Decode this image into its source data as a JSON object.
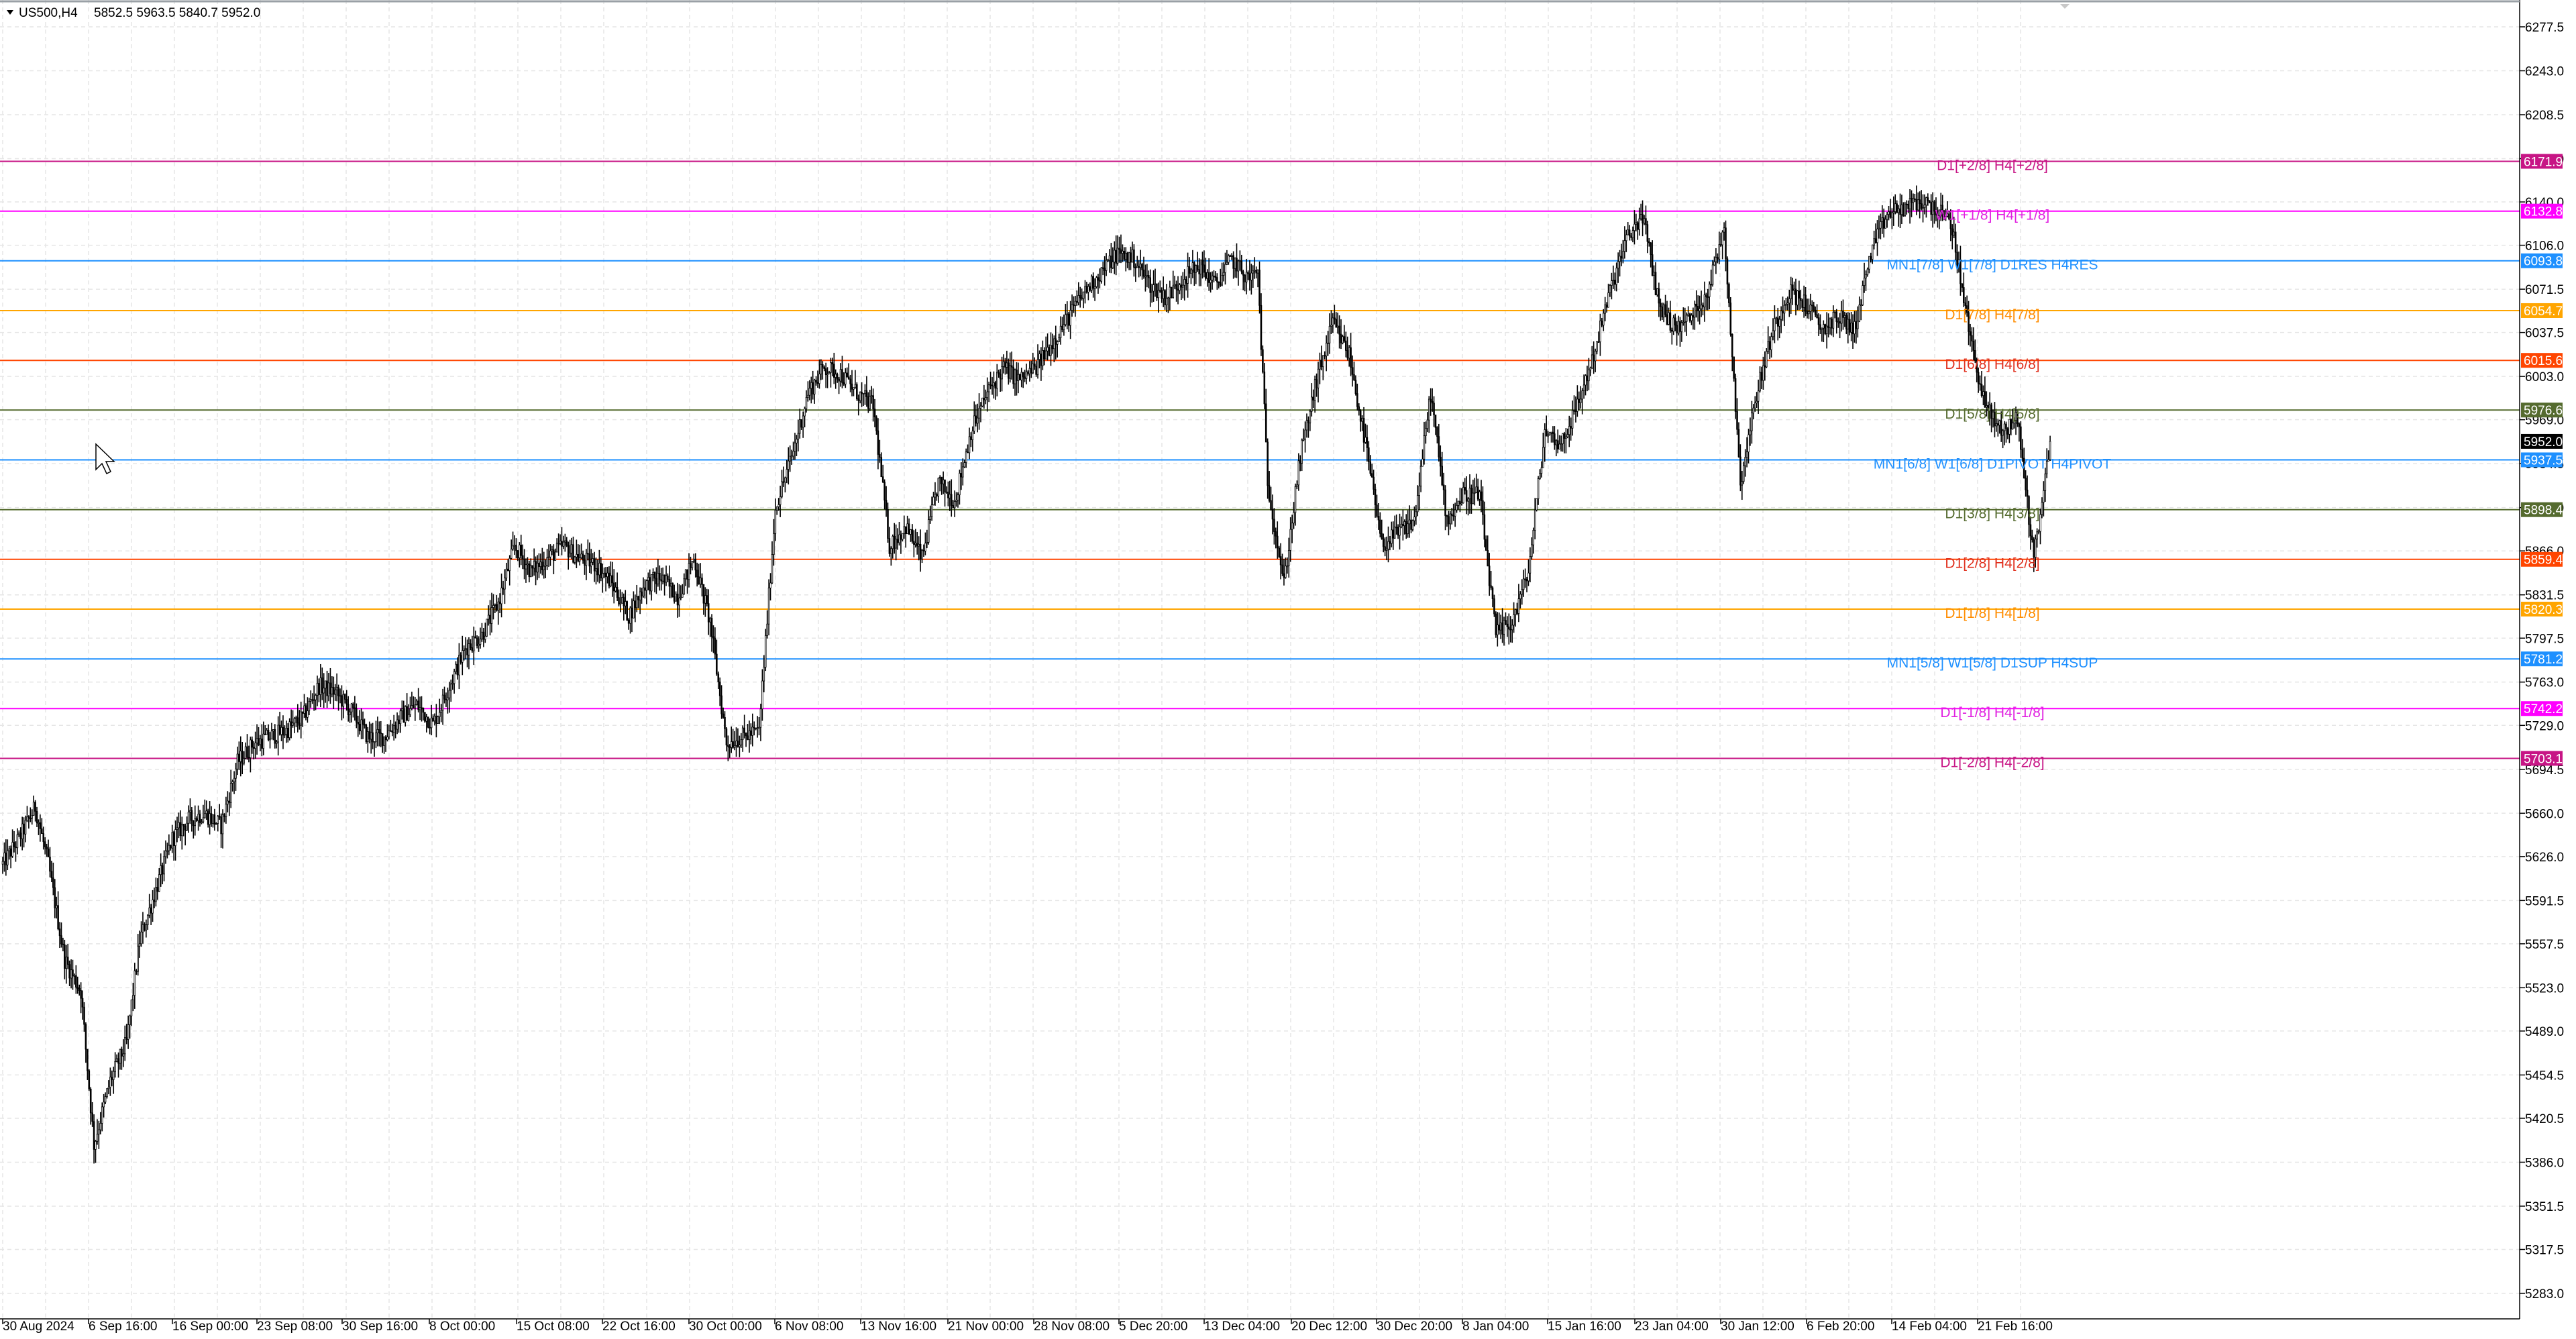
{
  "header": {
    "symbol": "US500,H4",
    "ohlc": "5852.5 5963.5 5840.7 5952.0"
  },
  "current_price": {
    "value": 5952.0,
    "label": "5952.0",
    "color": "#000000"
  },
  "chart_data": {
    "type": "candlestick",
    "ylim": [
      5270,
      6278
    ],
    "grid": true,
    "y_ticks": [
      "6277.5",
      "6243.0",
      "6208.5",
      "6174.0",
      "6140.0",
      "6106.0",
      "6071.5",
      "6037.5",
      "6003.0",
      "5969.0",
      "5934.5",
      "5900.0",
      "5866.0",
      "5831.5",
      "5797.5",
      "5763.0",
      "5729.0",
      "5694.5",
      "5660.0",
      "5626.0",
      "5591.5",
      "5557.5",
      "5523.0",
      "5489.0",
      "5454.5",
      "5420.5",
      "5386.0",
      "5351.5",
      "5317.5",
      "5283.0"
    ],
    "x_ticks": [
      "30 Aug 2024",
      "6 Sep 16:00",
      "16 Sep 00:00",
      "23 Sep 08:00",
      "30 Sep 16:00",
      "8 Oct 00:00",
      "15 Oct 08:00",
      "22 Oct 16:00",
      "30 Oct 00:00",
      "6 Nov 08:00",
      "13 Nov 16:00",
      "21 Nov 00:00",
      "28 Nov 08:00",
      "5 Dec 20:00",
      "13 Dec 04:00",
      "20 Dec 12:00",
      "30 Dec 20:00",
      "8 Jan 04:00",
      "15 Jan 16:00",
      "23 Jan 04:00",
      "30 Jan 12:00",
      "6 Feb 20:00",
      "14 Feb 04:00",
      "21 Feb 16:00"
    ],
    "price_path": [
      [
        0,
        5620
      ],
      [
        10,
        5640
      ],
      [
        20,
        5665
      ],
      [
        28,
        5620
      ],
      [
        38,
        5545
      ],
      [
        48,
        5520
      ],
      [
        56,
        5400
      ],
      [
        66,
        5450
      ],
      [
        76,
        5480
      ],
      [
        84,
        5560
      ],
      [
        94,
        5600
      ],
      [
        104,
        5640
      ],
      [
        114,
        5655
      ],
      [
        124,
        5660
      ],
      [
        134,
        5650
      ],
      [
        144,
        5700
      ],
      [
        154,
        5715
      ],
      [
        164,
        5720
      ],
      [
        174,
        5725
      ],
      [
        184,
        5735
      ],
      [
        194,
        5760
      ],
      [
        204,
        5755
      ],
      [
        214,
        5740
      ],
      [
        224,
        5720
      ],
      [
        234,
        5720
      ],
      [
        244,
        5735
      ],
      [
        254,
        5745
      ],
      [
        264,
        5730
      ],
      [
        274,
        5760
      ],
      [
        284,
        5790
      ],
      [
        294,
        5800
      ],
      [
        304,
        5825
      ],
      [
        314,
        5870
      ],
      [
        324,
        5850
      ],
      [
        334,
        5860
      ],
      [
        344,
        5870
      ],
      [
        354,
        5860
      ],
      [
        364,
        5855
      ],
      [
        374,
        5840
      ],
      [
        384,
        5815
      ],
      [
        394,
        5840
      ],
      [
        404,
        5845
      ],
      [
        414,
        5830
      ],
      [
        424,
        5860
      ],
      [
        434,
        5810
      ],
      [
        444,
        5715
      ],
      [
        454,
        5720
      ],
      [
        464,
        5725
      ],
      [
        474,
        5900
      ],
      [
        484,
        5940
      ],
      [
        494,
        5990
      ],
      [
        504,
        6010
      ],
      [
        514,
        6005
      ],
      [
        524,
        5990
      ],
      [
        534,
        5980
      ],
      [
        544,
        5870
      ],
      [
        554,
        5885
      ],
      [
        564,
        5860
      ],
      [
        574,
        5920
      ],
      [
        584,
        5905
      ],
      [
        594,
        5960
      ],
      [
        604,
        5990
      ],
      [
        614,
        6010
      ],
      [
        624,
        6000
      ],
      [
        634,
        6010
      ],
      [
        644,
        6030
      ],
      [
        654,
        6050
      ],
      [
        664,
        6070
      ],
      [
        674,
        6085
      ],
      [
        684,
        6100
      ],
      [
        694,
        6095
      ],
      [
        704,
        6075
      ],
      [
        714,
        6065
      ],
      [
        724,
        6080
      ],
      [
        734,
        6090
      ],
      [
        744,
        6075
      ],
      [
        754,
        6095
      ],
      [
        764,
        6080
      ],
      [
        770,
        6085
      ],
      [
        776,
        5920
      ],
      [
        786,
        5840
      ],
      [
        796,
        5940
      ],
      [
        806,
        6000
      ],
      [
        816,
        6045
      ],
      [
        826,
        6020
      ],
      [
        836,
        5950
      ],
      [
        846,
        5870
      ],
      [
        856,
        5880
      ],
      [
        866,
        5890
      ],
      [
        876,
        5990
      ],
      [
        886,
        5890
      ],
      [
        896,
        5910
      ],
      [
        906,
        5910
      ],
      [
        916,
        5800
      ],
      [
        926,
        5810
      ],
      [
        936,
        5850
      ],
      [
        946,
        5960
      ],
      [
        956,
        5950
      ],
      [
        966,
        5980
      ],
      [
        976,
        6020
      ],
      [
        986,
        6070
      ],
      [
        996,
        6110
      ],
      [
        1006,
        6130
      ],
      [
        1016,
        6060
      ],
      [
        1026,
        6040
      ],
      [
        1036,
        6050
      ],
      [
        1046,
        6070
      ],
      [
        1056,
        6120
      ],
      [
        1066,
        5920
      ],
      [
        1076,
        5990
      ],
      [
        1086,
        6040
      ],
      [
        1096,
        6070
      ],
      [
        1106,
        6060
      ],
      [
        1116,
        6040
      ],
      [
        1126,
        6050
      ],
      [
        1136,
        6040
      ],
      [
        1146,
        6100
      ],
      [
        1156,
        6130
      ],
      [
        1166,
        6135
      ],
      [
        1176,
        6140
      ],
      [
        1186,
        6135
      ],
      [
        1196,
        6120
      ],
      [
        1206,
        6040
      ],
      [
        1216,
        5980
      ],
      [
        1226,
        5960
      ],
      [
        1236,
        5970
      ],
      [
        1246,
        5860
      ],
      [
        1256,
        5952
      ]
    ],
    "levels": [
      {
        "value": 6171.9,
        "badge": "6171.9",
        "label": "D1[+2/8] H4[+2/8]",
        "color": "#c71585",
        "label_color": "#c71585"
      },
      {
        "value": 6132.8,
        "badge": "6132.8",
        "label": "W1[+1/8] H4[+1/8]",
        "color": "#ff00ff",
        "label_color": "#e020e0"
      },
      {
        "value": 6093.8,
        "badge": "6093.8",
        "label": "MN1[7/8] W1[7/8] D1RES H4RES",
        "color": "#1e90ff",
        "label_color": "#1e90ff"
      },
      {
        "value": 6054.7,
        "badge": "6054.7",
        "label": "D1[7/8] H4[7/8]",
        "color": "#ffa500",
        "label_color": "#ff8c00"
      },
      {
        "value": 6015.6,
        "badge": "6015.6",
        "label": "D1[6/8] H4[6/8]",
        "color": "#ff4500",
        "label_color": "#e0301e"
      },
      {
        "value": 5976.6,
        "badge": "5976.6",
        "label": "D1[5/8] H4[5/8]",
        "color": "#556b2f",
        "label_color": "#556b2f"
      },
      {
        "value": 5937.5,
        "badge": "5937.5",
        "label": "MN1[6/8] W1[6/8] D1PIVOT H4PIVOT",
        "color": "#1e90ff",
        "label_color": "#1e90ff"
      },
      {
        "value": 5898.4,
        "badge": "5898.4",
        "label": "D1[3/8] H4[3/8]",
        "color": "#556b2f",
        "label_color": "#556b2f"
      },
      {
        "value": 5859.4,
        "badge": "5859.4",
        "label": "D1[2/8] H4[2/8]",
        "color": "#ff4500",
        "label_color": "#e0301e"
      },
      {
        "value": 5820.3,
        "badge": "5820.3",
        "label": "D1[1/8] H4[1/8]",
        "color": "#ffa500",
        "label_color": "#ff8c00"
      },
      {
        "value": 5781.2,
        "badge": "5781.2",
        "label": "MN1[5/8] W1[5/8] D1SUP H4SUP",
        "color": "#1e90ff",
        "label_color": "#1e90ff"
      },
      {
        "value": 5742.2,
        "badge": "5742.2",
        "label": "D1[-1/8] H4[-1/8]",
        "color": "#ff00ff",
        "label_color": "#e020e0"
      },
      {
        "value": 5703.1,
        "badge": "5703.1",
        "label": "D1[-2/8] H4[-2/8]",
        "color": "#c71585",
        "label_color": "#c71585"
      }
    ]
  }
}
